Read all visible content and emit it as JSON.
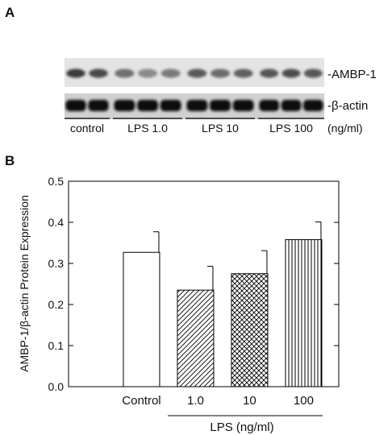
{
  "panel_a": {
    "letter": "A",
    "bands": [
      "-AMBP-1",
      "-β-actin"
    ],
    "groups": [
      "control",
      "LPS 1.0",
      "LPS 10",
      "LPS 100"
    ],
    "unit": "(ng/ml)",
    "lanes_per_group": [
      2,
      3,
      3,
      3
    ]
  },
  "panel_b": {
    "letter": "B"
  },
  "chart_data": {
    "type": "bar",
    "categories": [
      "Control",
      "1.0",
      "10",
      "100"
    ],
    "values": [
      0.327,
      0.235,
      0.275,
      0.358
    ],
    "errors": [
      0.05,
      0.058,
      0.056,
      0.043
    ],
    "patterns": [
      "none",
      "diagonal",
      "crosshatch",
      "vertical"
    ],
    "ylabel": "AMBP-1/β-actin Protein Expression",
    "xlabel": "LPS (ng/ml)",
    "ylim": [
      0,
      0.5
    ],
    "yticks": [
      "0.0",
      "0.1",
      "0.2",
      "0.3",
      "0.4",
      "0.5"
    ],
    "grid": false
  }
}
